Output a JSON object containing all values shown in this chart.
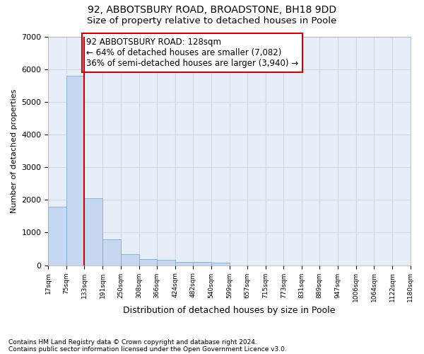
{
  "title1": "92, ABBOTSBURY ROAD, BROADSTONE, BH18 9DD",
  "title2": "Size of property relative to detached houses in Poole",
  "xlabel": "Distribution of detached houses by size in Poole",
  "ylabel": "Number of detached properties",
  "footer1": "Contains HM Land Registry data © Crown copyright and database right 2024.",
  "footer2": "Contains public sector information licensed under the Open Government Licence v3.0.",
  "annotation_line1": "92 ABBOTSBURY ROAD: 128sqm",
  "annotation_line2": "← 64% of detached houses are smaller (7,082)",
  "annotation_line3": "36% of semi-detached houses are larger (3,940) →",
  "bar_left_edges": [
    17,
    75,
    133,
    191,
    250,
    308,
    366,
    424,
    482,
    540,
    599,
    657,
    715,
    773,
    831,
    889,
    947,
    1006,
    1064,
    1122
  ],
  "bar_widths": [
    58,
    58,
    58,
    59,
    58,
    58,
    58,
    58,
    58,
    59,
    58,
    58,
    58,
    58,
    58,
    58,
    59,
    58,
    58,
    58
  ],
  "bar_heights": [
    1780,
    5800,
    2060,
    800,
    340,
    195,
    165,
    110,
    105,
    80,
    0,
    0,
    0,
    0,
    0,
    0,
    0,
    0,
    0,
    0
  ],
  "bar_color": "#c5d8ef",
  "bar_edgecolor": "#7aadd4",
  "vline_color": "#cc0000",
  "vline_x": 133,
  "ylim": [
    0,
    7000
  ],
  "yticks": [
    0,
    1000,
    2000,
    3000,
    4000,
    5000,
    6000,
    7000
  ],
  "xtick_labels": [
    "17sqm",
    "75sqm",
    "133sqm",
    "191sqm",
    "250sqm",
    "308sqm",
    "366sqm",
    "424sqm",
    "482sqm",
    "540sqm",
    "599sqm",
    "657sqm",
    "715sqm",
    "773sqm",
    "831sqm",
    "889sqm",
    "947sqm",
    "1006sqm",
    "1064sqm",
    "1122sqm",
    "1180sqm"
  ],
  "grid_color": "#d0d8e8",
  "bg_color": "#e8eef7",
  "box_edgecolor": "#cc0000",
  "annotation_fontsize": 8.5,
  "title1_fontsize": 10,
  "title2_fontsize": 9.5,
  "xlabel_fontsize": 9,
  "ylabel_fontsize": 8
}
